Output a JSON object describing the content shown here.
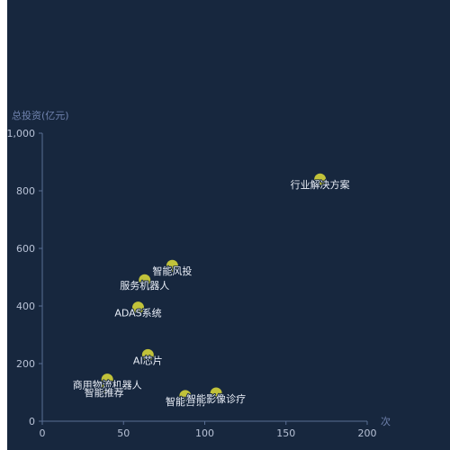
{
  "chart_data": {
    "type": "scatter",
    "xlabel": "次",
    "ylabel": "总投资(亿元)",
    "xlim": [
      0,
      200
    ],
    "ylim": [
      0,
      1000
    ],
    "x_ticks": [
      "0",
      "50",
      "100",
      "150",
      "200"
    ],
    "y_ticks": [
      "0",
      "200",
      "400",
      "600",
      "800",
      "1,000"
    ],
    "grid": false,
    "point_color": "#d4d43a",
    "points": [
      {
        "name": "行业解决方案",
        "x": 171,
        "y": 840
      },
      {
        "name": "智能风投",
        "x": 80,
        "y": 540
      },
      {
        "name": "服务机器人",
        "x": 63,
        "y": 490
      },
      {
        "name": "ADAS系统",
        "x": 59,
        "y": 395
      },
      {
        "name": "AI芯片",
        "x": 65,
        "y": 230
      },
      {
        "name": "商用物流机器人",
        "x": 40,
        "y": 145
      },
      {
        "name": "智能推荐",
        "x": 38,
        "y": 118
      },
      {
        "name": "智能营销",
        "x": 88,
        "y": 88
      },
      {
        "name": "智能影像诊疗",
        "x": 107,
        "y": 97
      }
    ]
  }
}
